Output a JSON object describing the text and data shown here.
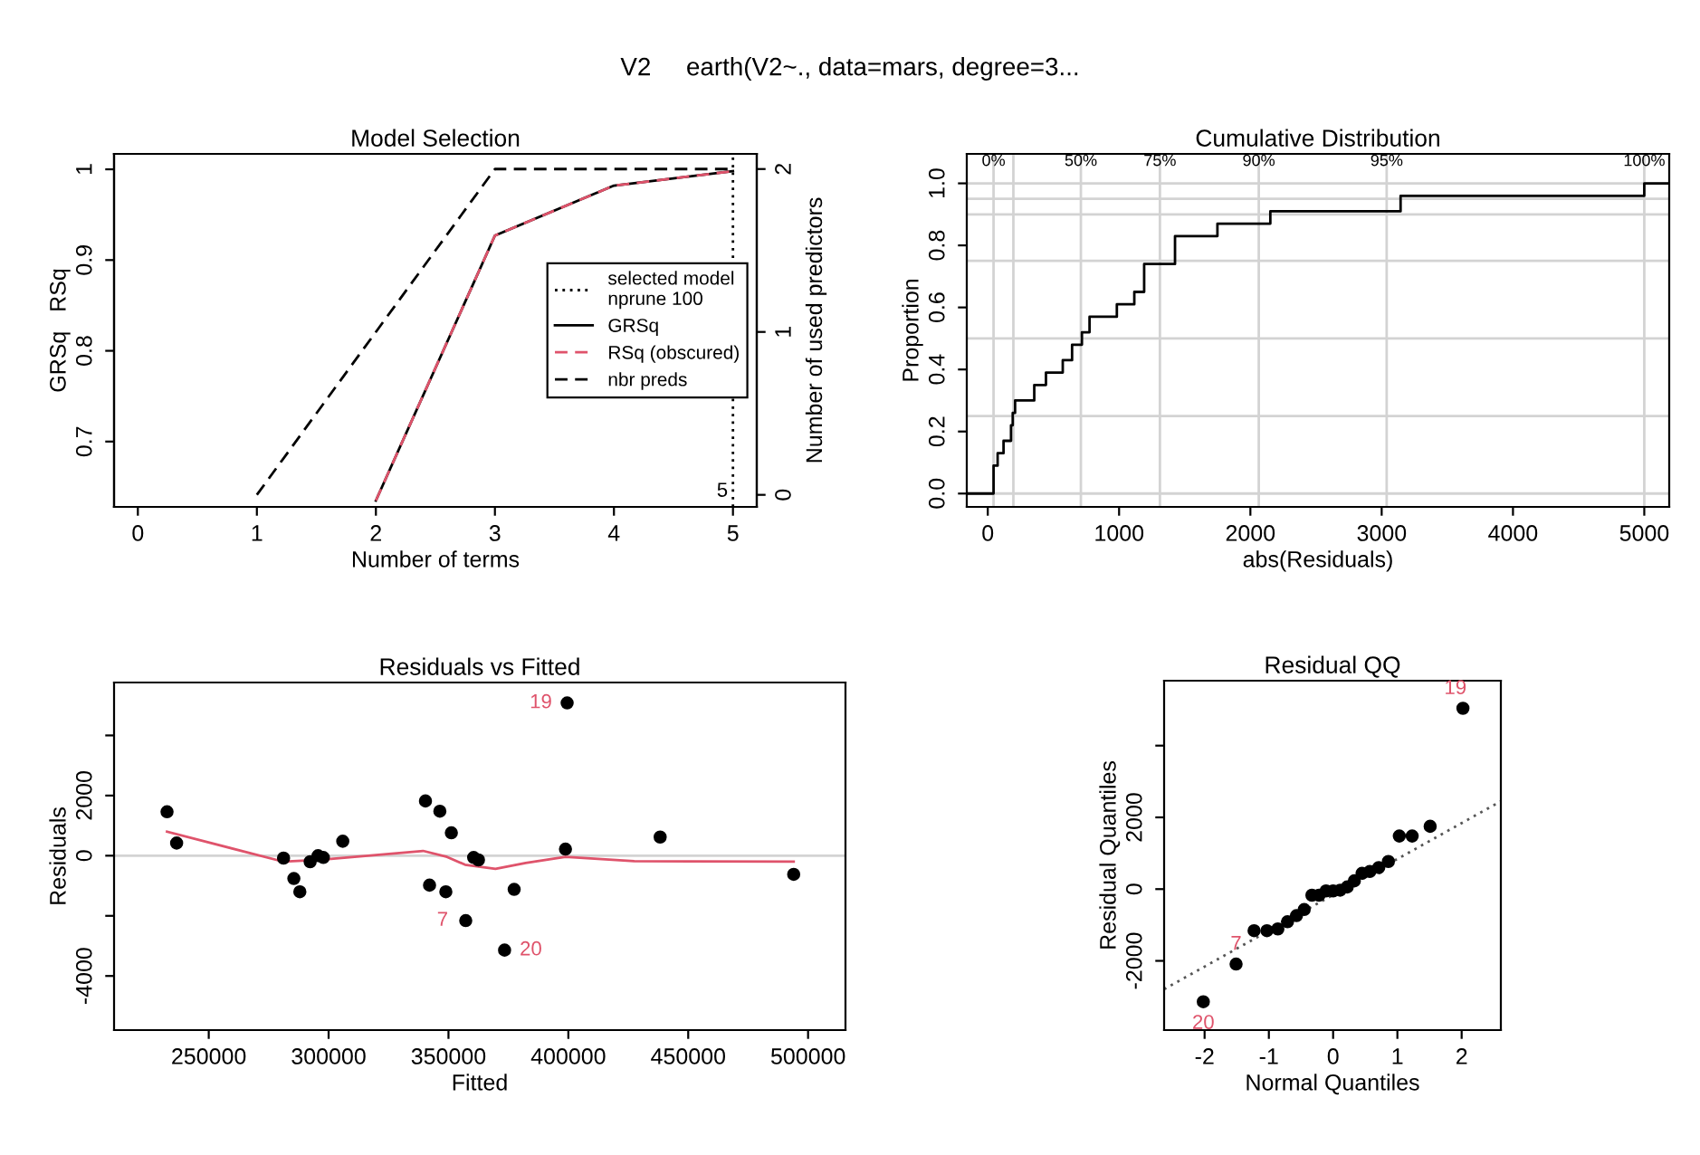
{
  "chart_data": [
    {
      "type": "line",
      "title": "Model Selection",
      "xlabel": "Number of terms",
      "ylabel": "GRSq   RSq",
      "y2label": "Number of used predictors",
      "annotations": [
        "V2     earth(V2~., data=mars, degree=3...",
        {
          "text": "5",
          "x": 5,
          "y": 0.645
        }
      ],
      "xlim": [
        -0.2,
        5.2
      ],
      "xticks": [
        0,
        1,
        2,
        3,
        4,
        5
      ],
      "ylim": [
        0.628,
        1.017
      ],
      "yticks": [
        0.7,
        0.8,
        0.9,
        1
      ],
      "y2lim": [
        -0.074,
        2.093
      ],
      "y2ticks": [
        0,
        1,
        2
      ],
      "legend": "right",
      "ref_lines": [
        {
          "axis": "x",
          "value": 5,
          "label": "selected model\nnprune 100",
          "line_style": "dotted",
          "color": "#000000"
        }
      ],
      "series": [
        {
          "name": "GRSq",
          "color": "#000000",
          "line_style": "solid",
          "x": [
            2,
            3,
            4,
            5
          ],
          "values": [
            0.635,
            0.927,
            0.982,
            0.998
          ]
        },
        {
          "name": "RSq (obscured)",
          "color": "#df536b",
          "line_style": "dashed",
          "x": [
            2,
            3,
            4,
            5
          ],
          "values": [
            0.635,
            0.927,
            0.982,
            0.998
          ]
        },
        {
          "name": "nbr preds",
          "color": "#000000",
          "line_style": "dashed",
          "axis": "y2",
          "x": [
            1,
            2,
            3,
            4,
            5
          ],
          "values": [
            0,
            1,
            2,
            2,
            2
          ]
        }
      ]
    },
    {
      "type": "step",
      "title": "Cumulative Distribution",
      "xlabel": "abs(Residuals)",
      "ylabel": "Proportion",
      "xlim": [
        -160,
        5190
      ],
      "xticks": [
        0,
        1000,
        2000,
        3000,
        4000,
        5000
      ],
      "ylim": [
        -0.043,
        1.095
      ],
      "yticks": [
        {
          "value": 0,
          "label": "0.0"
        },
        {
          "value": 0.2,
          "label": "0.2"
        },
        {
          "value": 0.4,
          "label": "0.4"
        },
        {
          "value": 0.6,
          "label": "0.6"
        },
        {
          "value": 0.8,
          "label": "0.8"
        },
        {
          "value": 1,
          "label": "1.0"
        }
      ],
      "x": [
        -160,
        44,
        75,
        120,
        177,
        190,
        208,
        354,
        443,
        571,
        642,
        717,
        775,
        983,
        1116,
        1191,
        1426,
        1749,
        2152,
        3144,
        5000,
        5190
      ],
      "annotations": [
        {
          "text": "0%",
          "x": 44,
          "y": 1.07
        },
        {
          "text": "50%",
          "x": 709,
          "y": 1.07
        },
        {
          "text": "75%",
          "x": 1311,
          "y": 1.07
        },
        {
          "text": "90%",
          "x": 2064,
          "y": 1.07
        },
        {
          "text": "95%",
          "x": 3038,
          "y": 1.07
        },
        {
          "text": "100%",
          "x": 5000,
          "y": 1.07
        }
      ],
      "ref_lines": [
        {
          "axis": "x",
          "value": 44,
          "label": null,
          "color": "#d3d3d3"
        },
        {
          "axis": "x",
          "value": 195,
          "label": null,
          "color": "#d3d3d3"
        },
        {
          "axis": "x",
          "value": 709,
          "label": null,
          "color": "#d3d3d3"
        },
        {
          "axis": "x",
          "value": 1311,
          "label": null,
          "color": "#d3d3d3"
        },
        {
          "axis": "x",
          "value": 2064,
          "label": null,
          "color": "#d3d3d3"
        },
        {
          "axis": "x",
          "value": 3038,
          "label": null,
          "color": "#d3d3d3"
        },
        {
          "axis": "x",
          "value": 5000,
          "label": null,
          "color": "#d3d3d3"
        },
        {
          "axis": "y",
          "value": 0,
          "label": null,
          "color": "#d3d3d3"
        },
        {
          "axis": "y",
          "value": 0.25,
          "label": null,
          "color": "#d3d3d3"
        },
        {
          "axis": "y",
          "value": 0.5,
          "label": null,
          "color": "#d3d3d3"
        },
        {
          "axis": "y",
          "value": 0.75,
          "label": null,
          "color": "#d3d3d3"
        },
        {
          "axis": "y",
          "value": 0.9,
          "label": null,
          "color": "#d3d3d3"
        },
        {
          "axis": "y",
          "value": 0.95,
          "label": null,
          "color": "#d3d3d3"
        },
        {
          "axis": "y",
          "value": 1,
          "label": null,
          "color": "#d3d3d3"
        }
      ],
      "series": [
        {
          "color": "#000000",
          "values": [
            0,
            0.09,
            0.13,
            0.17,
            0.22,
            0.26,
            0.3,
            0.35,
            0.39,
            0.43,
            0.48,
            0.52,
            0.57,
            0.61,
            0.65,
            0.74,
            0.83,
            0.87,
            0.91,
            0.96,
            1.0,
            1.0
          ]
        }
      ]
    },
    {
      "type": "scatter",
      "title": "Residuals vs Fitted",
      "xlabel": "Fitted",
      "ylabel": "Residuals",
      "xlim": [
        210500,
        515600
      ],
      "xticks": [
        250000,
        300000,
        350000,
        400000,
        450000,
        500000
      ],
      "ylim": [
        -5800,
        5760
      ],
      "yticks": [
        -4000,
        {
          "value": -2000,
          "label": null
        },
        0,
        2000,
        {
          "value": 4000,
          "label": null
        }
      ],
      "ref_lines": [
        {
          "axis": "y",
          "value": 0,
          "label": null,
          "color": "#d3d3d3"
        }
      ],
      "annotations": [
        {
          "text": "19",
          "x": 399500,
          "y": 5080
        },
        {
          "text": "7",
          "x": 357200,
          "y": -2160
        },
        {
          "text": "20",
          "x": 373400,
          "y": -3140
        }
      ],
      "series": [
        {
          "type": "scatter",
          "marker": "circle",
          "color": "#000000",
          "x": [
            232600,
            236600,
            281200,
            285500,
            288000,
            292300,
            295600,
            297800,
            305900,
            340400,
            342100,
            346400,
            348900,
            351200,
            357200,
            360500,
            362500,
            373400,
            377400,
            398800,
            399500,
            438300,
            494000
          ],
          "values": [
            1460,
            420,
            -80,
            -760,
            -1200,
            -200,
            0,
            -60,
            480,
            1820,
            -980,
            1480,
            -1200,
            760,
            -2160,
            -60,
            -140,
            -3140,
            -1120,
            220,
            5080,
            620,
            -620
          ]
        },
        {
          "type": "line",
          "color": "#df536b",
          "line_style": "solid",
          "x": [
            232600,
            281200,
            296600,
            339400,
            349400,
            356900,
            369600,
            382200,
            398800,
            427500,
            494000
          ],
          "values": [
            800,
            -200,
            -140,
            160,
            -40,
            -300,
            -440,
            -240,
            -40,
            -180,
            -200
          ]
        }
      ]
    },
    {
      "type": "scatter",
      "title": "Residual QQ",
      "xlabel": "Normal Quantiles",
      "ylabel": "Residual Quantiles",
      "xlim": [
        -2.63,
        2.61
      ],
      "xticks": [
        -2,
        -1,
        0,
        1,
        2
      ],
      "ylim": [
        -3930,
        5810
      ],
      "yticks": [
        -2000,
        0,
        2000,
        {
          "value": 4000,
          "label": null
        }
      ],
      "annotations": [
        {
          "text": "19",
          "x": 2.02,
          "y": 5040
        },
        {
          "text": "7",
          "x": -1.51,
          "y": -2090
        },
        {
          "text": "20",
          "x": -2.02,
          "y": -3140
        }
      ],
      "series": [
        {
          "type": "scatter",
          "marker": "circle",
          "color": "#000000",
          "x": [
            -2.02,
            -1.51,
            -1.23,
            -1.03,
            -0.86,
            -0.71,
            -0.57,
            -0.45,
            -0.33,
            -0.22,
            -0.11,
            0,
            0.11,
            0.22,
            0.33,
            0.45,
            0.57,
            0.71,
            0.86,
            1.03,
            1.23,
            1.51,
            2.02
          ],
          "values": [
            -3140,
            -2090,
            -1160,
            -1160,
            -1110,
            -910,
            -740,
            -570,
            -170,
            -170,
            -50,
            -50,
            -30,
            60,
            230,
            440,
            490,
            600,
            770,
            1480,
            1480,
            1750,
            5040
          ]
        },
        {
          "type": "line",
          "color": "#555555",
          "line_style": "dotted",
          "x": [
            -2.63,
            2.61
          ],
          "values": [
            -2790,
            2450
          ]
        }
      ]
    }
  ]
}
